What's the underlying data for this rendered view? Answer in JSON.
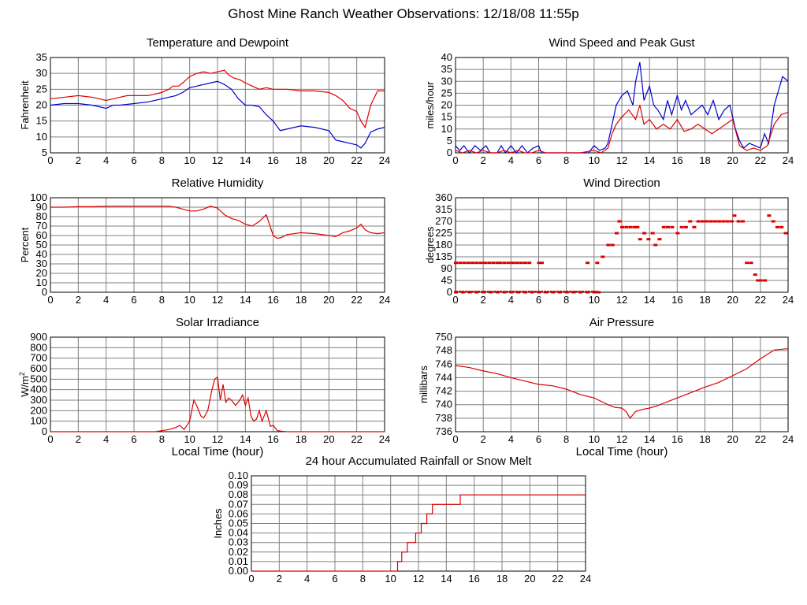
{
  "page": {
    "title": "Ghost Mine Ranch Weather Observations: 12/18/08 11:55p"
  },
  "colors": {
    "temperature": "#dd0000",
    "dewpoint": "#0000cc",
    "grid": "#808080",
    "red": "#dd0000",
    "blue": "#0000cc"
  },
  "chart_data": [
    {
      "id": "temp",
      "type": "line",
      "title": "Temperature and Dewpoint",
      "ylabel": "Fahrenheit",
      "xlabel": "",
      "xlim": [
        0,
        24
      ],
      "ylim": [
        5,
        35
      ],
      "xticks": [
        0,
        2,
        4,
        6,
        8,
        10,
        12,
        14,
        16,
        18,
        20,
        22,
        24
      ],
      "yticks": [
        5,
        10,
        15,
        20,
        25,
        30,
        35
      ],
      "grid": true,
      "series": [
        {
          "color": "#dd0000",
          "x": [
            0,
            1,
            2,
            3,
            3.5,
            4,
            4.5,
            5,
            5.5,
            6,
            7,
            8,
            8.5,
            8.8,
            9.2,
            9.5,
            10,
            10.5,
            11,
            11.5,
            12,
            12.5,
            12.8,
            13.2,
            13.6,
            14,
            14.5,
            15,
            15.5,
            16,
            16.5,
            17,
            18,
            19,
            20,
            20.5,
            21,
            21.5,
            22,
            22.3,
            22.6,
            23,
            23.5,
            24
          ],
          "y": [
            22,
            22.5,
            23,
            22.5,
            22,
            21.5,
            22,
            22.5,
            23,
            23,
            23,
            24,
            25,
            26,
            26,
            27,
            29,
            30,
            30.5,
            30,
            30.5,
            31,
            29.5,
            28.5,
            28,
            27,
            26,
            25,
            25.5,
            25,
            25,
            25,
            24.5,
            24.5,
            24,
            23,
            21.5,
            19,
            18,
            15,
            13,
            20,
            24.5,
            24.5
          ]
        },
        {
          "color": "#0000cc",
          "x": [
            0,
            1,
            2,
            3,
            3.5,
            4,
            4.5,
            5,
            6,
            7,
            8,
            8.5,
            9,
            9.5,
            10,
            10.5,
            11,
            11.5,
            12,
            12.5,
            13,
            13.5,
            14,
            14.5,
            15,
            15.5,
            16,
            16.5,
            17,
            18,
            19,
            20,
            20.5,
            21,
            21.5,
            22,
            22.3,
            22.6,
            23,
            23.5,
            24
          ],
          "y": [
            20,
            20.5,
            20.5,
            20,
            19.5,
            19,
            20,
            20,
            20.5,
            21,
            22,
            22.5,
            23,
            24,
            25.5,
            26,
            26.5,
            27,
            27.5,
            26.5,
            25,
            22,
            20,
            20,
            19.5,
            17,
            15,
            12,
            12.5,
            13.5,
            13,
            12,
            9,
            8.5,
            8,
            7.5,
            6.5,
            8,
            11.5,
            12.5,
            13
          ]
        }
      ]
    },
    {
      "id": "wind",
      "type": "line",
      "title": "Wind Speed and Peak Gust",
      "ylabel": "miles/hour",
      "xlabel": "",
      "xlim": [
        0,
        24
      ],
      "ylim": [
        0,
        40
      ],
      "xticks": [
        0,
        2,
        4,
        6,
        8,
        10,
        12,
        14,
        16,
        18,
        20,
        22,
        24
      ],
      "yticks": [
        0,
        5,
        10,
        15,
        20,
        25,
        30,
        35,
        40
      ],
      "grid": true,
      "series": [
        {
          "color": "#0000cc",
          "x": [
            0,
            0.3,
            0.6,
            1,
            1.4,
            1.8,
            2.2,
            2.5,
            3,
            3.3,
            3.6,
            4,
            4.4,
            4.8,
            5.2,
            5.6,
            6,
            6.2,
            6.4,
            7,
            8,
            9,
            9.6,
            10,
            10.4,
            10.8,
            11,
            11.3,
            11.6,
            12,
            12.4,
            12.8,
            13,
            13.3,
            13.6,
            14,
            14.3,
            14.6,
            15,
            15.3,
            15.6,
            16,
            16.3,
            16.6,
            17,
            17.4,
            17.8,
            18.2,
            18.6,
            19,
            19.4,
            19.8,
            20.2,
            20.5,
            20.8,
            21.2,
            21.6,
            22,
            22.3,
            22.6,
            23,
            23.3,
            23.6,
            24
          ],
          "y": [
            3,
            1,
            3,
            0,
            3,
            1,
            3,
            0,
            0,
            3,
            0,
            3,
            0,
            3,
            0,
            2,
            3,
            0,
            0,
            0,
            0,
            0,
            0,
            3,
            1,
            2,
            4,
            12,
            20,
            24,
            26,
            20,
            30,
            38,
            22,
            28,
            20,
            18,
            14,
            22,
            16,
            24,
            18,
            22,
            16,
            18,
            20,
            16,
            22,
            14,
            18,
            20,
            10,
            5,
            2,
            4,
            3,
            2,
            8,
            4,
            20,
            26,
            32,
            30
          ]
        },
        {
          "color": "#dd0000",
          "x": [
            0,
            0.5,
            1,
            1.5,
            2,
            2.5,
            3,
            3.5,
            4,
            4.5,
            5,
            5.5,
            6,
            6.5,
            7,
            8,
            9,
            10,
            10.5,
            11,
            11.3,
            11.6,
            12,
            12.5,
            13,
            13.3,
            13.6,
            14,
            14.5,
            15,
            15.5,
            16,
            16.5,
            17,
            17.5,
            18,
            18.5,
            19,
            19.5,
            20,
            20.5,
            21,
            21.5,
            22,
            22.5,
            23,
            23.5,
            24
          ],
          "y": [
            1,
            0,
            1,
            0,
            1,
            0,
            0,
            1,
            0,
            1,
            0,
            0,
            1,
            0,
            0,
            0,
            0,
            1,
            0,
            2,
            8,
            12,
            15,
            18,
            14,
            20,
            12,
            14,
            10,
            12,
            10,
            14,
            9,
            10,
            12,
            10,
            8,
            10,
            12,
            14,
            3,
            1,
            2,
            1,
            3,
            12,
            16,
            17
          ]
        }
      ]
    },
    {
      "id": "rh",
      "type": "line",
      "title": "Relative Humidity",
      "ylabel": "Percent",
      "xlabel": "",
      "xlim": [
        0,
        24
      ],
      "ylim": [
        0,
        100
      ],
      "xticks": [
        0,
        2,
        4,
        6,
        8,
        10,
        12,
        14,
        16,
        18,
        20,
        22,
        24
      ],
      "yticks": [
        0,
        10,
        20,
        30,
        40,
        50,
        60,
        70,
        80,
        90,
        100
      ],
      "grid": true,
      "series": [
        {
          "color": "#dd0000",
          "x": [
            0,
            1,
            2,
            3,
            4,
            5,
            6,
            7,
            8,
            8.5,
            9,
            9.5,
            10,
            10.5,
            11,
            11.5,
            12,
            12.5,
            13,
            13.5,
            14,
            14.5,
            15,
            15.5,
            16,
            16.3,
            16.6,
            17,
            18,
            19,
            20,
            20.5,
            21,
            21.5,
            22,
            22.3,
            22.6,
            23,
            23.5,
            24
          ],
          "y": [
            90,
            90,
            90.5,
            90.5,
            91,
            91,
            91,
            91,
            91,
            91,
            90,
            88,
            86,
            86,
            88,
            91,
            89,
            82,
            78,
            76,
            72,
            70,
            75,
            82,
            60,
            57,
            58,
            61,
            63,
            62,
            60,
            59,
            63,
            65,
            68,
            72,
            66,
            63,
            62,
            63
          ]
        }
      ]
    },
    {
      "id": "wdir",
      "type": "scatter",
      "title": "Wind Direction",
      "ylabel": "degrees",
      "xlabel": "",
      "xlim": [
        0,
        24
      ],
      "ylim": [
        0,
        360
      ],
      "xticks": [
        0,
        2,
        4,
        6,
        8,
        10,
        12,
        14,
        16,
        18,
        20,
        22,
        24
      ],
      "yticks": [
        0,
        45,
        90,
        135,
        180,
        225,
        270,
        315,
        360
      ],
      "grid": true,
      "series": [
        {
          "color": "#dd0000",
          "x": [
            0,
            0.3,
            0.6,
            0.9,
            1.2,
            1.5,
            1.8,
            2.1,
            2.4,
            2.7,
            3,
            3.2,
            3.5,
            3.8,
            4.1,
            4.4,
            4.7,
            5.0,
            5.3,
            6.0,
            6.2,
            9.5,
            10.2,
            10.6,
            11.0,
            11.3,
            11.6,
            11.8,
            12.0,
            12.3,
            12.6,
            12.9,
            13.1,
            13.3,
            13.6,
            13.9,
            14.2,
            14.4,
            14.7,
            15.0,
            15.3,
            15.6,
            16.0,
            16.3,
            16.6,
            16.9,
            17.2,
            17.5,
            17.8,
            18.1,
            18.4,
            18.7,
            19.0,
            19.3,
            19.6,
            19.9,
            20.1,
            20.4,
            20.7,
            21.0,
            21.3,
            21.6,
            21.8,
            22.0,
            22.3,
            22.6,
            22.9,
            23.2,
            23.5,
            23.8
          ],
          "y": [
            112,
            112,
            112,
            112,
            112,
            112,
            112,
            112,
            112,
            112,
            112,
            112,
            112,
            112,
            112,
            112,
            112,
            112,
            112,
            112,
            112,
            112,
            112,
            135,
            180,
            180,
            225,
            270,
            248,
            248,
            248,
            248,
            248,
            202,
            225,
            202,
            225,
            180,
            202,
            248,
            248,
            248,
            225,
            248,
            248,
            270,
            248,
            270,
            270,
            270,
            270,
            270,
            270,
            270,
            270,
            270,
            292,
            270,
            270,
            112,
            112,
            67,
            45,
            45,
            45,
            292,
            270,
            248,
            248,
            225
          ]
        },
        {
          "color": "#dd0000",
          "x": [
            0,
            0.5,
            1,
            1.5,
            2,
            2.5,
            3,
            3.5,
            4,
            4.5,
            5,
            5.5,
            6,
            6.5,
            7,
            7.5,
            8,
            8.5,
            9,
            9.5,
            10,
            10.3
          ],
          "y": [
            0,
            0,
            0,
            0,
            0,
            0,
            0,
            0,
            0,
            0,
            0,
            0,
            0,
            0,
            0,
            0,
            0,
            0,
            0,
            0,
            0,
            0
          ]
        }
      ]
    },
    {
      "id": "solar",
      "type": "line",
      "title": "Solar Irradiance",
      "ylabel": "W/m2",
      "xlabel": "Local Time (hour)",
      "xlim": [
        0,
        24
      ],
      "ylim": [
        0,
        900
      ],
      "xticks": [
        0,
        2,
        4,
        6,
        8,
        10,
        12,
        14,
        16,
        18,
        20,
        22,
        24
      ],
      "yticks": [
        0,
        100,
        200,
        300,
        400,
        500,
        600,
        700,
        800,
        900
      ],
      "grid": true,
      "series": [
        {
          "color": "#dd0000",
          "x": [
            0,
            2,
            4,
            6,
            7.5,
            8,
            8.5,
            9,
            9.3,
            9.6,
            10,
            10.3,
            10.5,
            10.8,
            11,
            11.3,
            11.6,
            11.8,
            12,
            12.2,
            12.4,
            12.6,
            12.8,
            13,
            13.3,
            13.6,
            13.8,
            14,
            14.2,
            14.4,
            14.6,
            14.8,
            15,
            15.2,
            15.5,
            15.8,
            16,
            16.3,
            16.6,
            17,
            18,
            20,
            22,
            24
          ],
          "y": [
            0,
            0,
            0,
            0,
            0,
            10,
            20,
            40,
            60,
            20,
            100,
            300,
            250,
            150,
            130,
            200,
            400,
            500,
            520,
            300,
            450,
            280,
            320,
            300,
            250,
            300,
            350,
            250,
            320,
            150,
            100,
            120,
            200,
            100,
            200,
            50,
            60,
            10,
            5,
            0,
            0,
            0,
            0,
            0
          ]
        }
      ]
    },
    {
      "id": "pressure",
      "type": "line",
      "title": "Air Pressure",
      "ylabel": "millibars",
      "xlabel": "Local Time (hour)",
      "xlim": [
        0,
        24
      ],
      "ylim": [
        736,
        750
      ],
      "xticks": [
        0,
        2,
        4,
        6,
        8,
        10,
        12,
        14,
        16,
        18,
        20,
        22,
        24
      ],
      "yticks": [
        736,
        738,
        740,
        742,
        744,
        746,
        748,
        750
      ],
      "grid": true,
      "series": [
        {
          "color": "#dd0000",
          "x": [
            0,
            1,
            2,
            3,
            4,
            5,
            6,
            7,
            8,
            9,
            10,
            11,
            11.5,
            12,
            12.3,
            12.6,
            13,
            13.5,
            14,
            14.5,
            15,
            16,
            17,
            18,
            19,
            20,
            21,
            22,
            23,
            24
          ],
          "y": [
            745.8,
            745.5,
            745.0,
            744.6,
            744.0,
            743.5,
            743.0,
            742.8,
            742.3,
            741.5,
            741.0,
            740.0,
            739.6,
            739.5,
            739.0,
            738.0,
            739.0,
            739.3,
            739.5,
            739.8,
            740.2,
            741.0,
            741.8,
            742.6,
            743.3,
            744.3,
            745.3,
            746.8,
            748.1,
            748.3
          ]
        }
      ]
    },
    {
      "id": "rain",
      "type": "line",
      "title": "24 hour Accumulated Rainfall or Snow Melt",
      "ylabel": "Inches",
      "xlabel": "",
      "xlim": [
        0,
        24
      ],
      "ylim": [
        0,
        0.1
      ],
      "xticks": [
        0,
        2,
        4,
        6,
        8,
        10,
        12,
        14,
        16,
        18,
        20,
        22,
        24
      ],
      "yticks": [
        "0.00",
        "0.01",
        "0.02",
        "0.03",
        "0.04",
        "0.05",
        "0.06",
        "0.07",
        "0.08",
        "0.09",
        "0.10"
      ],
      "grid": true,
      "series": [
        {
          "color": "#dd0000",
          "step": true,
          "x": [
            0,
            10.2,
            10.5,
            10.8,
            11.2,
            11.8,
            12.2,
            12.6,
            13.0,
            13.3,
            14.5,
            15.0,
            24
          ],
          "y": [
            0,
            0,
            0.01,
            0.02,
            0.03,
            0.04,
            0.05,
            0.06,
            0.07,
            0.07,
            0.07,
            0.08,
            0.08
          ]
        }
      ]
    }
  ]
}
